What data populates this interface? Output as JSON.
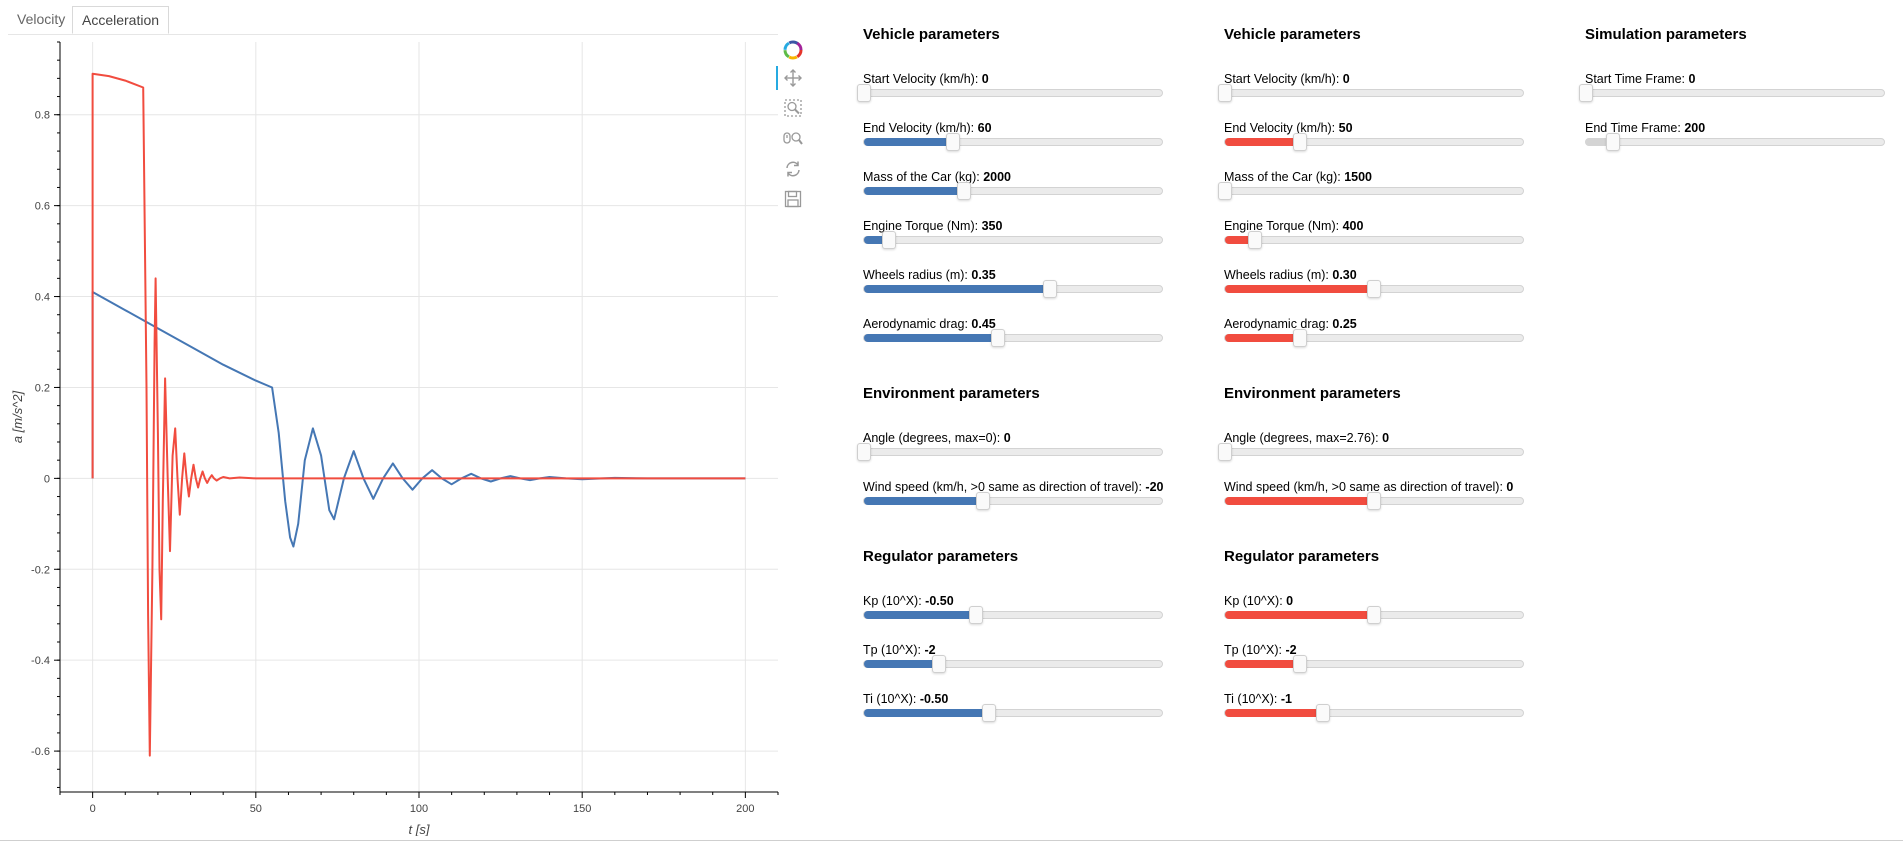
{
  "tabs": [
    {
      "label": "Velocity",
      "active": false
    },
    {
      "label": "Acceleration",
      "active": true
    }
  ],
  "toolbar": {
    "tools": [
      "logo-icon",
      "pan-icon",
      "box-zoom-icon",
      "wheel-zoom-icon",
      "reset-icon",
      "save-icon"
    ]
  },
  "colors": {
    "blue": "#4577b4",
    "red": "#f14c3f"
  },
  "columns": [
    {
      "color": "#4577b4",
      "sections": [
        {
          "title": "Vehicle parameters",
          "sliders": [
            {
              "label": "Start Velocity (km/h):",
              "value": "0",
              "fraction": 0.0
            },
            {
              "label": "End Velocity (km/h):",
              "value": "60",
              "fraction": 0.3
            },
            {
              "label": "Mass of the Car (kg):",
              "value": "2000",
              "fraction": 0.335
            },
            {
              "label": "Engine Torque (Nm):",
              "value": "350",
              "fraction": 0.085
            },
            {
              "label": "Wheels radius (m):",
              "value": "0.35",
              "fraction": 0.625
            },
            {
              "label": "Aerodynamic drag:",
              "value": "0.45",
              "fraction": 0.45
            }
          ]
        },
        {
          "title": "Environment parameters",
          "sliders": [
            {
              "label": "Angle (degrees, max=0):",
              "value": "0",
              "fraction": 0.0
            },
            {
              "label": "Wind speed (km/h, >0 same as direction of travel):",
              "value": "-20",
              "fraction": 0.4
            }
          ]
        },
        {
          "title": "Regulator parameters",
          "sliders": [
            {
              "label": "Kp (10^X):",
              "value": "-0.50",
              "fraction": 0.375
            },
            {
              "label": "Tp (10^X):",
              "value": "-2",
              "fraction": 0.25
            },
            {
              "label": "Ti (10^X):",
              "value": "-0.50",
              "fraction": 0.42
            }
          ]
        }
      ]
    },
    {
      "color": "#f14c3f",
      "sections": [
        {
          "title": "Vehicle parameters",
          "sliders": [
            {
              "label": "Start Velocity (km/h):",
              "value": "0",
              "fraction": 0.0
            },
            {
              "label": "End Velocity (km/h):",
              "value": "50",
              "fraction": 0.25
            },
            {
              "label": "Mass of the Car (kg):",
              "value": "1500",
              "fraction": 0.0
            },
            {
              "label": "Engine Torque (Nm):",
              "value": "400",
              "fraction": 0.1
            },
            {
              "label": "Wheels radius (m):",
              "value": "0.30",
              "fraction": 0.5
            },
            {
              "label": "Aerodynamic drag:",
              "value": "0.25",
              "fraction": 0.25
            }
          ]
        },
        {
          "title": "Environment parameters",
          "sliders": [
            {
              "label": "Angle (degrees, max=2.76):",
              "value": "0",
              "fraction": 0.0
            },
            {
              "label": "Wind speed (km/h, >0 same as direction of travel):",
              "value": "0",
              "fraction": 0.5
            }
          ]
        },
        {
          "title": "Regulator parameters",
          "sliders": [
            {
              "label": "Kp (10^X):",
              "value": "0",
              "fraction": 0.5
            },
            {
              "label": "Tp (10^X):",
              "value": "-2",
              "fraction": 0.25
            },
            {
              "label": "Ti (10^X):",
              "value": "-1",
              "fraction": 0.33
            }
          ]
        }
      ]
    },
    {
      "color": "#d4d4d4",
      "sections": [
        {
          "title": "Simulation parameters",
          "sliders": [
            {
              "label": "Start Time Frame:",
              "value": "0",
              "fraction": 0.0
            },
            {
              "label": "End Time Frame:",
              "value": "200",
              "fraction": 0.09
            }
          ]
        }
      ]
    }
  ],
  "chart_data": {
    "type": "line",
    "xlabel": "t [s]",
    "ylabel": "a [m/s^2]",
    "xlim": [
      -10,
      210
    ],
    "ylim": [
      -0.69,
      0.96
    ],
    "x_ticks": [
      0,
      50,
      100,
      150,
      200
    ],
    "y_ticks": [
      -0.6,
      -0.4,
      -0.2,
      0,
      0.2,
      0.4,
      0.6,
      0.8
    ],
    "x_tick_labels": [
      "0",
      "50",
      "100",
      "150",
      "200"
    ],
    "y_tick_labels": [
      "-0.6",
      "-0.4",
      "-0.2",
      "0",
      "0.2",
      "0.4",
      "0.6",
      "0.8"
    ],
    "grid": true,
    "series": [
      {
        "color": "#4577b4",
        "points": [
          [
            0,
            0
          ],
          [
            0,
            0.41
          ],
          [
            10,
            0.37
          ],
          [
            20,
            0.33
          ],
          [
            30,
            0.29
          ],
          [
            40,
            0.25
          ],
          [
            50,
            0.215
          ],
          [
            55,
            0.2
          ],
          [
            57,
            0.1
          ],
          [
            59,
            -0.05
          ],
          [
            60.5,
            -0.13
          ],
          [
            61.5,
            -0.15
          ],
          [
            63,
            -0.1
          ],
          [
            65,
            0.04
          ],
          [
            67.5,
            0.11
          ],
          [
            70,
            0.05
          ],
          [
            72.5,
            -0.07
          ],
          [
            74,
            -0.09
          ],
          [
            77,
            0.0
          ],
          [
            80,
            0.06
          ],
          [
            83,
            0.0
          ],
          [
            86,
            -0.045
          ],
          [
            89,
            0.0
          ],
          [
            92,
            0.033
          ],
          [
            95,
            0.0
          ],
          [
            98,
            -0.025
          ],
          [
            101,
            0.0
          ],
          [
            104,
            0.018
          ],
          [
            107,
            0.0
          ],
          [
            110,
            -0.013
          ],
          [
            113,
            0.0
          ],
          [
            116,
            0.01
          ],
          [
            119,
            0.0
          ],
          [
            122,
            -0.007
          ],
          [
            125,
            0.0
          ],
          [
            128,
            0.005
          ],
          [
            131,
            0.0
          ],
          [
            134,
            -0.004
          ],
          [
            137,
            0.0
          ],
          [
            140,
            0.003
          ],
          [
            145,
            0.0
          ],
          [
            150,
            -0.002
          ],
          [
            160,
            0.001
          ],
          [
            170,
            0.0
          ],
          [
            200,
            0.0
          ]
        ]
      },
      {
        "color": "#f14c3f",
        "points": [
          [
            0,
            0
          ],
          [
            0,
            0.89
          ],
          [
            5,
            0.885
          ],
          [
            10,
            0.875
          ],
          [
            15.5,
            0.86
          ],
          [
            16.5,
            0.2
          ],
          [
            17,
            -0.3
          ],
          [
            17.5,
            -0.61
          ],
          [
            18.3,
            -0.2
          ],
          [
            19,
            0.3
          ],
          [
            19.3,
            0.44
          ],
          [
            20,
            0.1
          ],
          [
            20.5,
            -0.2
          ],
          [
            21,
            -0.31
          ],
          [
            21.5,
            -0.05
          ],
          [
            22.2,
            0.22
          ],
          [
            23,
            0.0
          ],
          [
            23.7,
            -0.16
          ],
          [
            24.5,
            0.05
          ],
          [
            25.3,
            0.11
          ],
          [
            26,
            0.0
          ],
          [
            26.7,
            -0.08
          ],
          [
            27.4,
            0.0
          ],
          [
            28.1,
            0.055
          ],
          [
            28.8,
            0.0
          ],
          [
            29.5,
            -0.04
          ],
          [
            30.2,
            0.0
          ],
          [
            30.9,
            0.03
          ],
          [
            31.6,
            0.0
          ],
          [
            32.3,
            -0.02
          ],
          [
            33,
            0.0
          ],
          [
            33.7,
            0.015
          ],
          [
            34.4,
            0.0
          ],
          [
            35.1,
            -0.01
          ],
          [
            35.8,
            0.0
          ],
          [
            36.5,
            0.007
          ],
          [
            37.2,
            0.0
          ],
          [
            38,
            -0.005
          ],
          [
            39,
            0.0
          ],
          [
            40,
            0.003
          ],
          [
            42,
            0.0
          ],
          [
            45,
            0.002
          ],
          [
            50,
            0.0
          ],
          [
            200,
            0.0
          ]
        ]
      }
    ]
  }
}
